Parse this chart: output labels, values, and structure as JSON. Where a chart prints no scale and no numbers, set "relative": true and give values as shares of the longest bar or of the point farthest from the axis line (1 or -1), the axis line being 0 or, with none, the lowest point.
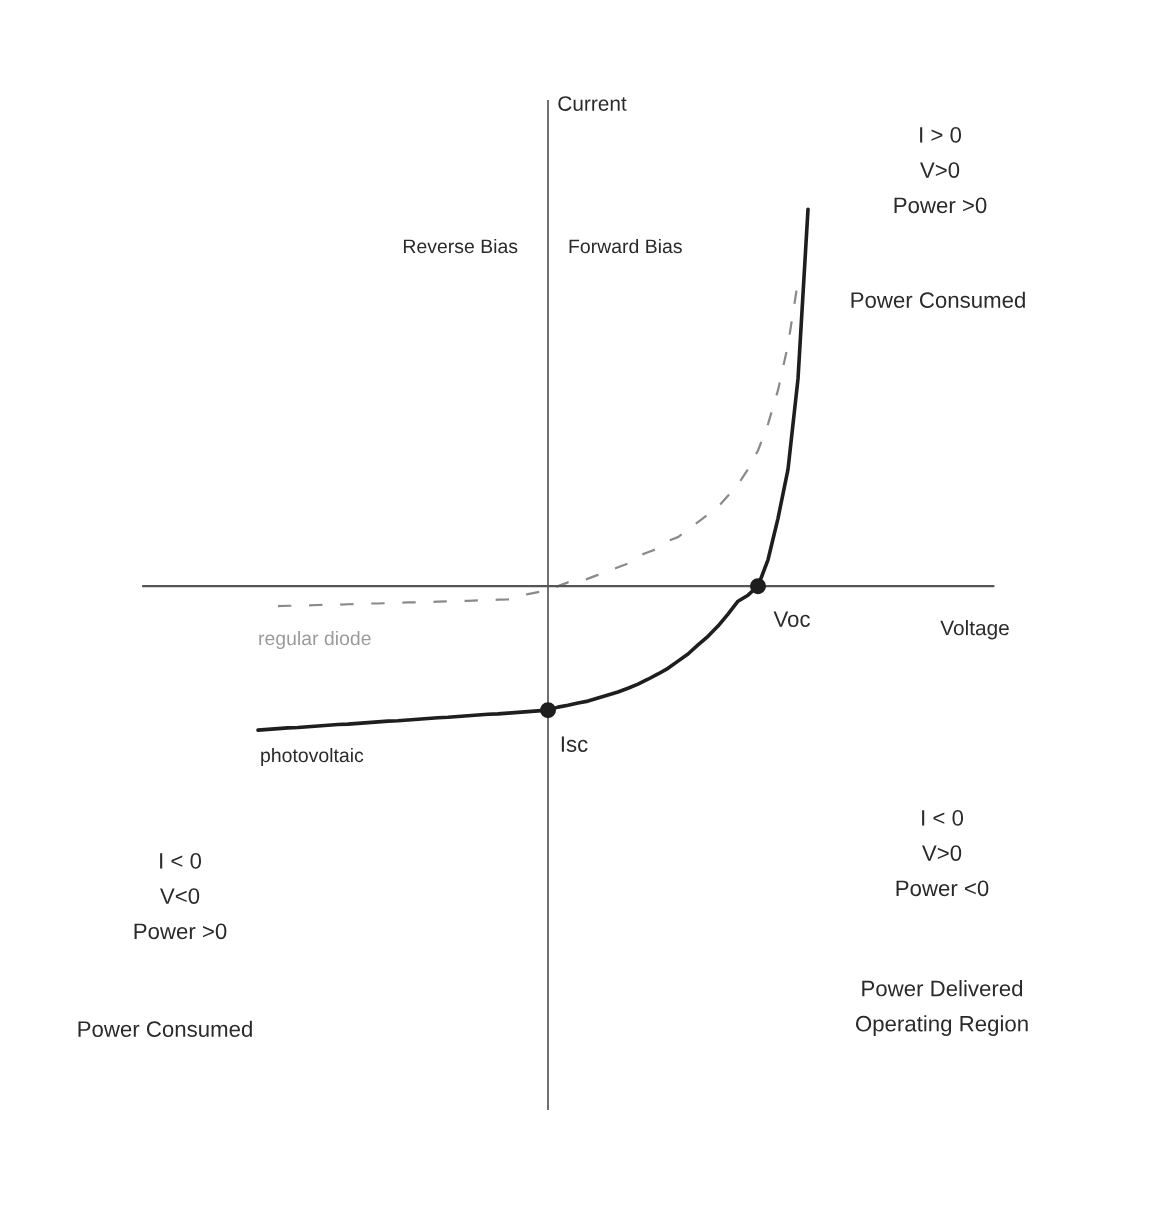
{
  "chart_data": {
    "type": "line",
    "relative": true,
    "xlabel": "Voltage",
    "ylabel": "Current",
    "categories": [
      null,
      null,
      null,
      null,
      null,
      null,
      null,
      null,
      null,
      null,
      null,
      null,
      null,
      null,
      null,
      null,
      null,
      null,
      null,
      null,
      null,
      null,
      null,
      null,
      null,
      null,
      null,
      null,
      null,
      null,
      null,
      null,
      null,
      null,
      null,
      null,
      null,
      null,
      null,
      null,
      null,
      null,
      null,
      null,
      null,
      null,
      null,
      null,
      null,
      null,
      null,
      null,
      null,
      null,
      null,
      null,
      null,
      null,
      null,
      null,
      null,
      null,
      null,
      null,
      null,
      null,
      null,
      null,
      null,
      null,
      null,
      null,
      null,
      null,
      null,
      null,
      null,
      null,
      null,
      null,
      null
    ],
    "series": [
      {
        "name": "photovoltaic",
        "color": "#1e1e1e",
        "line_style": "solid",
        "values": [
          null,
          null,
          null,
          null,
          null,
          null,
          null,
          null,
          null,
          null,
          null,
          -0.382,
          -0.38,
          -0.378,
          -0.376,
          -0.375,
          -0.373,
          -0.371,
          -0.369,
          -0.367,
          -0.366,
          -0.364,
          -0.362,
          -0.36,
          -0.358,
          -0.357,
          -0.355,
          -0.353,
          -0.351,
          -0.349,
          -0.348,
          -0.346,
          -0.344,
          -0.342,
          -0.34,
          -0.339,
          -0.337,
          -0.335,
          -0.333,
          -0.331,
          -0.329,
          -0.321,
          -0.316,
          -0.31,
          -0.305,
          -0.297,
          -0.289,
          -0.281,
          -0.271,
          -0.26,
          -0.247,
          -0.233,
          -0.218,
          -0.199,
          -0.18,
          -0.156,
          -0.133,
          -0.106,
          -0.074,
          -0.04,
          -0.024,
          0,
          0.07,
          0.18,
          0.31,
          0.55,
          1,
          null,
          null,
          null,
          null,
          null,
          null,
          null,
          null,
          null,
          null,
          null,
          null,
          null,
          null
        ]
      },
      {
        "name": "regular diode",
        "color": "#8a8a8a",
        "line_style": "dashed",
        "values": [
          null,
          null,
          null,
          null,
          null,
          null,
          null,
          null,
          null,
          null,
          null,
          null,
          null,
          -0.053,
          -0.052,
          -0.052,
          -0.051,
          -0.05,
          -0.049,
          -0.049,
          -0.048,
          -0.047,
          -0.046,
          -0.046,
          -0.045,
          -0.044,
          -0.043,
          -0.043,
          -0.042,
          -0.041,
          -0.04,
          -0.04,
          -0.039,
          -0.038,
          -0.037,
          -0.036,
          -0.035,
          -0.027,
          -0.021,
          -0.016,
          -0.011,
          0.0,
          0.01,
          0.01,
          0.02,
          0.03,
          0.04,
          0.05,
          0.06,
          0.08,
          0.09,
          0.1,
          0.12,
          0.13,
          0.15,
          0.17,
          0.19,
          0.21,
          0.24,
          0.27,
          0.31,
          0.36,
          0.43,
          0.52,
          0.64,
          0.81,
          null,
          null,
          null,
          null,
          null,
          null,
          null,
          null,
          null,
          null,
          null,
          null,
          null,
          null,
          null
        ]
      }
    ],
    "annotations": [
      "Reverse Bias",
      "Forward Bias",
      "I > 0\nV>0\nPower >0",
      "Power Consumed",
      "Voc",
      "Isc",
      "I < 0\nV>0\nPower <0",
      "Power Delivered\nOperating Region",
      "I < 0\nV<0\nPower >0",
      "Power Consumed"
    ],
    "grid": false,
    "legend": false
  }
}
